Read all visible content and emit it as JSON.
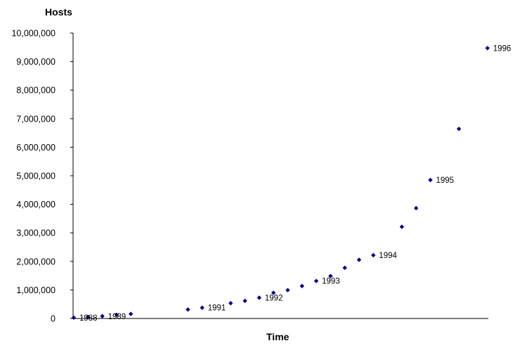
{
  "chart_data": {
    "type": "scatter",
    "title": "",
    "ylabel": "Hosts",
    "xlabel": "Time",
    "ylim": [
      0,
      10000000
    ],
    "y_ticks": [
      "0",
      "1,000,000",
      "2,000,000",
      "3,000,000",
      "4,000,000",
      "5,000,000",
      "6,000,000",
      "7,000,000",
      "8,000,000",
      "9,000,000",
      "10,000,000"
    ],
    "grid": false,
    "legend": "none",
    "marker_color": "#000080",
    "points": [
      {
        "i": 0,
        "y": 28174
      },
      {
        "i": 1,
        "y": 56000
      },
      {
        "i": 2,
        "y": 80000
      },
      {
        "i": 3,
        "y": 130000
      },
      {
        "i": 4,
        "y": 159000
      },
      {
        "i": 8,
        "y": 313000
      },
      {
        "i": 9,
        "y": 376000
      },
      {
        "i": 11,
        "y": 535000
      },
      {
        "i": 12,
        "y": 617000
      },
      {
        "i": 13,
        "y": 727000
      },
      {
        "i": 14,
        "y": 900000
      },
      {
        "i": 15,
        "y": 992000
      },
      {
        "i": 16,
        "y": 1136000
      },
      {
        "i": 17,
        "y": 1313000
      },
      {
        "i": 18,
        "y": 1486000
      },
      {
        "i": 19,
        "y": 1776000
      },
      {
        "i": 20,
        "y": 2056000
      },
      {
        "i": 21,
        "y": 2217000
      },
      {
        "i": 23,
        "y": 3212000
      },
      {
        "i": 24,
        "y": 3864000
      },
      {
        "i": 25,
        "y": 4852000
      },
      {
        "i": 27,
        "y": 6642000
      },
      {
        "i": 29,
        "y": 9472000
      }
    ],
    "annotations": [
      {
        "text": "1988",
        "i": 0,
        "y": 28174
      },
      {
        "text": "1989",
        "i": 2,
        "y": 80000
      },
      {
        "text": "1991",
        "i": 9,
        "y": 376000
      },
      {
        "text": "1992",
        "i": 13,
        "y": 727000
      },
      {
        "text": "1993",
        "i": 17,
        "y": 1313000
      },
      {
        "text": "1994",
        "i": 21,
        "y": 2217000
      },
      {
        "text": "1995",
        "i": 25,
        "y": 4852000
      },
      {
        "text": "1996",
        "i": 29,
        "y": 9472000
      }
    ]
  }
}
